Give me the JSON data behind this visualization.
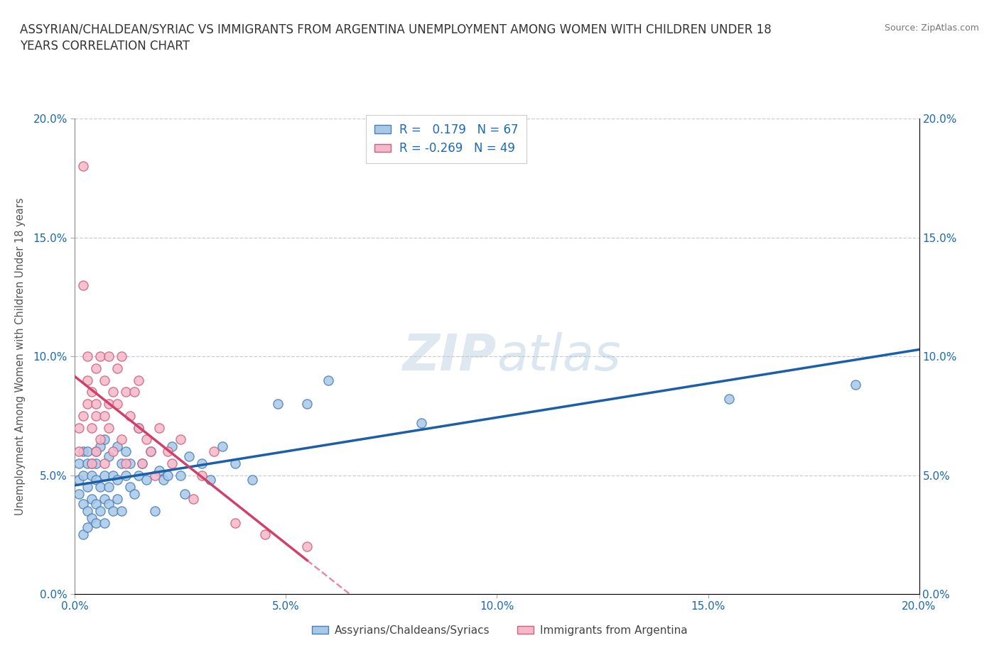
{
  "title": "ASSYRIAN/CHALDEAN/SYRIAC VS IMMIGRANTS FROM ARGENTINA UNEMPLOYMENT AMONG WOMEN WITH CHILDREN UNDER 18\nYEARS CORRELATION CHART",
  "source_text": "Source: ZipAtlas.com",
  "ylabel": "Unemployment Among Women with Children Under 18 years",
  "xlim": [
    0.0,
    0.2
  ],
  "ylim": [
    0.0,
    0.2
  ],
  "xtick_vals": [
    0.0,
    0.05,
    0.1,
    0.15,
    0.2
  ],
  "ytick_vals": [
    0.0,
    0.05,
    0.1,
    0.15,
    0.2
  ],
  "blue_R": 0.179,
  "blue_N": 67,
  "pink_R": -0.269,
  "pink_N": 49,
  "blue_color": "#a8c8e8",
  "pink_color": "#f4b8c8",
  "blue_edge_color": "#4a80b8",
  "pink_edge_color": "#d06080",
  "blue_line_color": "#1a5fa8",
  "pink_line_color": "#d0406a",
  "watermark_zip": "ZIP",
  "watermark_atlas": "atlas",
  "legend_label_blue": "Assyrians/Chaldeans/Syriacs",
  "legend_label_pink": "Immigrants from Argentina",
  "blue_scatter_x": [
    0.001,
    0.001,
    0.001,
    0.002,
    0.002,
    0.002,
    0.002,
    0.003,
    0.003,
    0.003,
    0.003,
    0.003,
    0.004,
    0.004,
    0.004,
    0.004,
    0.005,
    0.005,
    0.005,
    0.005,
    0.005,
    0.006,
    0.006,
    0.006,
    0.007,
    0.007,
    0.007,
    0.007,
    0.008,
    0.008,
    0.008,
    0.009,
    0.009,
    0.01,
    0.01,
    0.01,
    0.011,
    0.011,
    0.012,
    0.012,
    0.013,
    0.013,
    0.014,
    0.015,
    0.015,
    0.016,
    0.017,
    0.018,
    0.019,
    0.02,
    0.021,
    0.022,
    0.023,
    0.025,
    0.026,
    0.027,
    0.03,
    0.032,
    0.035,
    0.038,
    0.042,
    0.048,
    0.055,
    0.06,
    0.082,
    0.155,
    0.185
  ],
  "blue_scatter_y": [
    0.048,
    0.055,
    0.042,
    0.05,
    0.038,
    0.06,
    0.025,
    0.045,
    0.055,
    0.035,
    0.06,
    0.028,
    0.05,
    0.04,
    0.055,
    0.032,
    0.048,
    0.06,
    0.038,
    0.055,
    0.03,
    0.045,
    0.062,
    0.035,
    0.05,
    0.04,
    0.065,
    0.03,
    0.058,
    0.045,
    0.038,
    0.05,
    0.035,
    0.062,
    0.048,
    0.04,
    0.055,
    0.035,
    0.05,
    0.06,
    0.045,
    0.055,
    0.042,
    0.07,
    0.05,
    0.055,
    0.048,
    0.06,
    0.035,
    0.052,
    0.048,
    0.05,
    0.062,
    0.05,
    0.042,
    0.058,
    0.055,
    0.048,
    0.062,
    0.055,
    0.048,
    0.08,
    0.08,
    0.09,
    0.072,
    0.082,
    0.088
  ],
  "pink_scatter_x": [
    0.001,
    0.001,
    0.002,
    0.002,
    0.002,
    0.003,
    0.003,
    0.003,
    0.004,
    0.004,
    0.004,
    0.005,
    0.005,
    0.005,
    0.005,
    0.006,
    0.006,
    0.007,
    0.007,
    0.007,
    0.008,
    0.008,
    0.008,
    0.009,
    0.009,
    0.01,
    0.01,
    0.011,
    0.011,
    0.012,
    0.012,
    0.013,
    0.014,
    0.015,
    0.015,
    0.016,
    0.017,
    0.018,
    0.019,
    0.02,
    0.022,
    0.023,
    0.025,
    0.028,
    0.03,
    0.033,
    0.038,
    0.045,
    0.055
  ],
  "pink_scatter_y": [
    0.06,
    0.07,
    0.13,
    0.075,
    0.18,
    0.1,
    0.08,
    0.09,
    0.055,
    0.07,
    0.085,
    0.06,
    0.075,
    0.095,
    0.08,
    0.065,
    0.1,
    0.055,
    0.09,
    0.075,
    0.08,
    0.07,
    0.1,
    0.06,
    0.085,
    0.08,
    0.095,
    0.065,
    0.1,
    0.055,
    0.085,
    0.075,
    0.085,
    0.07,
    0.09,
    0.055,
    0.065,
    0.06,
    0.05,
    0.07,
    0.06,
    0.055,
    0.065,
    0.04,
    0.05,
    0.06,
    0.03,
    0.025,
    0.02
  ]
}
